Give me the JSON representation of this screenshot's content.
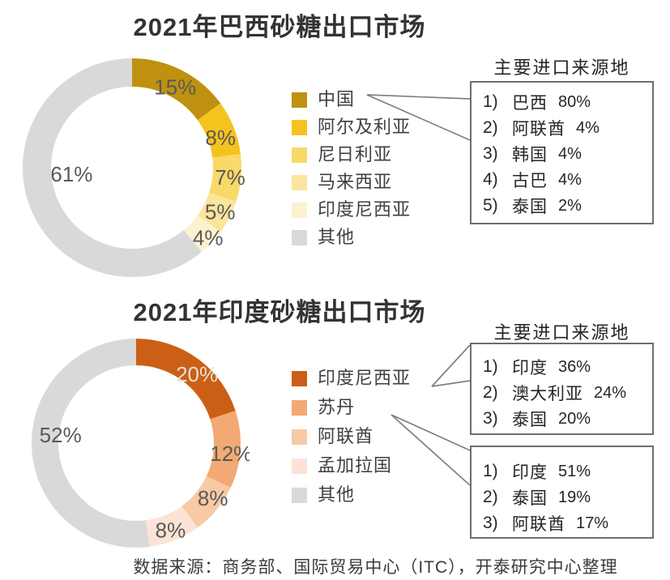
{
  "chart_data": [
    {
      "type": "donut",
      "title": "2021年巴西砂糖出口市场",
      "legend_position": "right",
      "start_angle_deg": 0,
      "direction": "clockwise",
      "categories": [
        "中国",
        "阿尔及利亚",
        "尼日利亚",
        "马来西亚",
        "印度尼西亚",
        "其他"
      ],
      "values": [
        15,
        8,
        7,
        5,
        4,
        61
      ],
      "labels": [
        "15%",
        "8%",
        "7%",
        "5%",
        "4%",
        "61%"
      ],
      "colors": [
        "#BE9210",
        "#F5C31D",
        "#F9D967",
        "#FBE59D",
        "#FDF2CF",
        "#D9D9D9"
      ],
      "label_colors": [
        "#595959",
        "#595959",
        "#595959",
        "#595959",
        "#595959",
        "#595959"
      ],
      "annotation_header": "主要进口来源地",
      "annotations": [
        {
          "points_to": "中国",
          "items": [
            {
              "no": "1)",
              "name": "巴西",
              "share": "80%"
            },
            {
              "no": "2)",
              "name": "阿联酋",
              "share": "4%"
            },
            {
              "no": "3)",
              "name": "韩国",
              "share": "4%"
            },
            {
              "no": "4)",
              "name": "古巴",
              "share": "4%"
            },
            {
              "no": "5)",
              "name": "泰国",
              "share": "2%"
            }
          ]
        }
      ]
    },
    {
      "type": "donut",
      "title": "2021年印度砂糖出口市场",
      "legend_position": "right",
      "start_angle_deg": 0,
      "direction": "clockwise",
      "categories": [
        "印度尼西亚",
        "苏丹",
        "阿联酋",
        "孟加拉国",
        "其他"
      ],
      "values": [
        20,
        12,
        8,
        8,
        52
      ],
      "labels": [
        "20%",
        "12%",
        "8%",
        "8%",
        "52%"
      ],
      "colors": [
        "#CC5F16",
        "#F2A974",
        "#F7C9A4",
        "#FBE4D5",
        "#D9D9D9"
      ],
      "label_colors": [
        "#E7E1D8",
        "#595959",
        "#595959",
        "#595959",
        "#595959"
      ],
      "annotation_header": "主要进口来源地",
      "annotations": [
        {
          "points_to": "印度尼西亚",
          "items": [
            {
              "no": "1)",
              "name": "印度",
              "share": "36%"
            },
            {
              "no": "2)",
              "name": "澳大利亚",
              "share": "24%"
            },
            {
              "no": "3)",
              "name": "泰国",
              "share": "20%"
            }
          ]
        },
        {
          "points_to": "苏丹",
          "items": [
            {
              "no": "1)",
              "name": "印度",
              "share": "51%"
            },
            {
              "no": "2)",
              "name": "泰国",
              "share": "19%"
            },
            {
              "no": "3)",
              "name": "阿联酋",
              "share": "17%"
            }
          ]
        }
      ]
    }
  ],
  "footer": {
    "text": "数据来源：商务部、国际贸易中心（ITC），开泰研究中心整理"
  },
  "style": {
    "connector_color": "#808080",
    "box_border_color": "#6e6e6e",
    "percent_label_color": "#595959",
    "gray_segment_color": "#D9D9D9"
  }
}
